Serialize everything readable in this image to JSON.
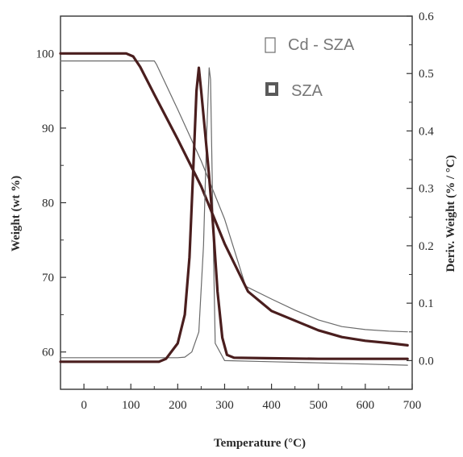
{
  "chart_data": {
    "type": "line",
    "xlabel": "Temperature (°C)",
    "ylabel_left": "Weight (wt %)",
    "ylabel_right": "Deriv. Weight (% / °C)",
    "xlim": [
      -50,
      700
    ],
    "ylim_left": [
      55,
      105
    ],
    "ylim_right": [
      -0.05,
      0.6
    ],
    "xticks": [
      0,
      100,
      200,
      300,
      400,
      500,
      600,
      700
    ],
    "yticks_left": [
      60,
      70,
      80,
      90,
      100
    ],
    "yticks_right": [
      0.0,
      0.1,
      0.2,
      0.3,
      0.4,
      0.5,
      0.6
    ],
    "xtick_labels": [
      "0",
      "100",
      "200",
      "300",
      "400",
      "500",
      "600",
      "700"
    ],
    "ytick_labels_left": [
      "60",
      "70",
      "80",
      "90",
      "100"
    ],
    "ytick_labels_right": [
      "0.0",
      "0.1",
      "0.2",
      "0.3",
      "0.4",
      "0.5",
      "0.6"
    ],
    "grid": false,
    "legend_position": "top-right",
    "legend": [
      {
        "label": "Cd - SZA",
        "color": "#6d6d6d",
        "marker": "thin-square"
      },
      {
        "label": "SZA",
        "color": "#5a5a5a",
        "marker": "thick-square"
      }
    ],
    "series": [
      {
        "name": "Cd - SZA",
        "axis": "left",
        "color": "#6a6a6a",
        "stroke": "thin",
        "x": [
          -50,
          150,
          155,
          200,
          250,
          300,
          345,
          400,
          450,
          500,
          550,
          600,
          650,
          690
        ],
        "y": [
          99.0,
          99.0,
          98.5,
          92.5,
          85.6,
          77.8,
          68.8,
          67.1,
          65.6,
          64.3,
          63.4,
          63.0,
          62.8,
          62.7
        ]
      },
      {
        "name": "SZA",
        "axis": "left",
        "color": "#4a1e1e",
        "stroke": "thick",
        "x": [
          -50,
          90,
          105,
          120,
          150,
          200,
          250,
          300,
          350,
          400,
          450,
          500,
          550,
          600,
          650,
          690
        ],
        "y": [
          100.0,
          100.0,
          99.6,
          98.2,
          94.5,
          88.5,
          82.2,
          74.5,
          68.1,
          65.5,
          64.2,
          62.9,
          62.0,
          61.5,
          61.2,
          60.9
        ]
      },
      {
        "name": "Cd - SZA",
        "axis": "right",
        "color": "#6a6a6a",
        "stroke": "thin",
        "x": [
          -50,
          200,
          215,
          230,
          245,
          255,
          262,
          267,
          270,
          275,
          280,
          300,
          400,
          500,
          600,
          690
        ],
        "y": [
          0.005,
          0.005,
          0.006,
          0.015,
          0.05,
          0.2,
          0.4,
          0.51,
          0.49,
          0.25,
          0.03,
          0.0,
          -0.002,
          -0.004,
          -0.006,
          -0.008
        ]
      },
      {
        "name": "SZA",
        "axis": "right",
        "color": "#4a1e1e",
        "stroke": "thick",
        "x": [
          -50,
          160,
          175,
          200,
          215,
          225,
          233,
          240,
          245,
          250,
          258,
          266,
          275,
          285,
          295,
          305,
          320,
          400,
          500,
          600,
          690
        ],
        "y": [
          -0.002,
          -0.002,
          0.003,
          0.03,
          0.08,
          0.18,
          0.33,
          0.47,
          0.51,
          0.47,
          0.4,
          0.33,
          0.24,
          0.12,
          0.04,
          0.01,
          0.005,
          0.004,
          0.003,
          0.003,
          0.003
        ]
      }
    ]
  }
}
